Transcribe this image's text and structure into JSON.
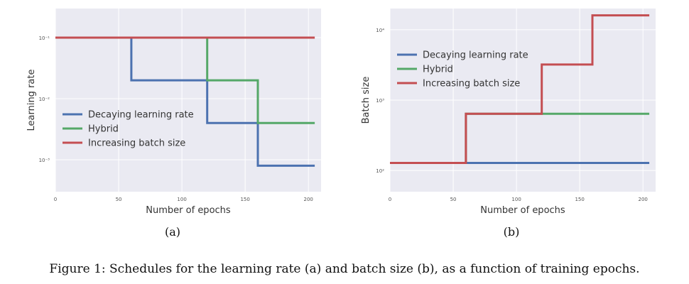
{
  "figure": {
    "caption": "Figure 1: Schedules for the learning rate (a) and batch size (b), as a function of training epochs."
  },
  "colors": {
    "decaying": "#4c72b0",
    "hybrid": "#55a868",
    "increasing": "#c44e52",
    "plot_bg": "#eaeaf2",
    "grid": "#ffffff"
  },
  "chart_data": [
    {
      "type": "line",
      "panel_label": "(a)",
      "xlabel": "Number of epochs",
      "ylabel": "Learning rate",
      "y_scale": "log",
      "xlim": [
        0,
        210
      ],
      "ylim": [
        0.0003,
        0.3
      ],
      "x_ticks": [
        0,
        50,
        100,
        150,
        200
      ],
      "x_tick_labels": [
        "0",
        "50",
        "100",
        "150",
        "200"
      ],
      "y_ticks": [
        0.001,
        0.01,
        0.1
      ],
      "y_tick_labels": [
        "10⁻³",
        "10⁻²",
        "10⁻¹"
      ],
      "legend_position": "center-left",
      "grid": true,
      "series": [
        {
          "name": "Decaying learning rate",
          "color": "#4c72b0",
          "x": [
            0,
            60,
            60,
            120,
            120,
            160,
            160,
            205
          ],
          "y": [
            0.1,
            0.1,
            0.02,
            0.02,
            0.004,
            0.004,
            0.0008,
            0.0008
          ]
        },
        {
          "name": "Hybrid",
          "color": "#55a868",
          "x": [
            0,
            120,
            120,
            160,
            160,
            205
          ],
          "y": [
            0.1,
            0.1,
            0.02,
            0.02,
            0.004,
            0.004
          ]
        },
        {
          "name": "Increasing batch size",
          "color": "#c44e52",
          "x": [
            0,
            205
          ],
          "y": [
            0.1,
            0.1
          ]
        }
      ]
    },
    {
      "type": "line",
      "panel_label": "(b)",
      "xlabel": "Number of epochs",
      "ylabel": "Batch size",
      "y_scale": "log",
      "xlim": [
        0,
        210
      ],
      "ylim": [
        50,
        20000
      ],
      "x_ticks": [
        0,
        50,
        100,
        150,
        200
      ],
      "x_tick_labels": [
        "0",
        "50",
        "100",
        "150",
        "200"
      ],
      "y_ticks": [
        100,
        1000,
        10000
      ],
      "y_tick_labels": [
        "10²",
        "10³",
        "10⁴"
      ],
      "legend_position": "top-left",
      "grid": true,
      "series": [
        {
          "name": "Decaying learning rate",
          "color": "#4c72b0",
          "x": [
            0,
            205
          ],
          "y": [
            128,
            128
          ]
        },
        {
          "name": "Hybrid",
          "color": "#55a868",
          "x": [
            0,
            60,
            60,
            205
          ],
          "y": [
            128,
            128,
            640,
            640
          ]
        },
        {
          "name": "Increasing batch size",
          "color": "#c44e52",
          "x": [
            0,
            60,
            60,
            120,
            120,
            160,
            160,
            205
          ],
          "y": [
            128,
            128,
            640,
            640,
            3200,
            3200,
            16000,
            16000
          ]
        }
      ]
    }
  ]
}
